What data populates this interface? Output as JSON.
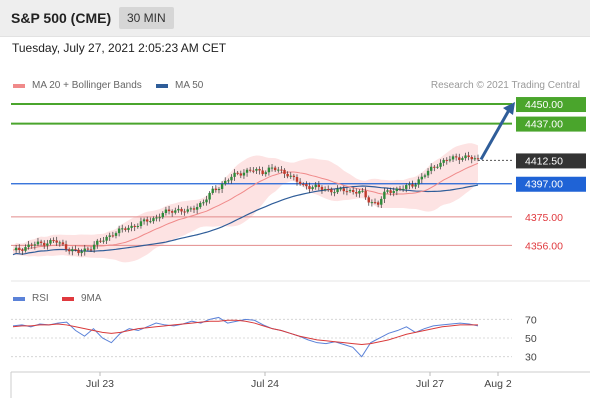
{
  "header": {
    "title": "S&P 500 (CME)",
    "timeframe": "30 MIN"
  },
  "datetime": "Tuesday, July 27, 2021 2:05:23 AM CET",
  "legend": {
    "ma20": "MA 20 + Bollinger Bands",
    "ma50": "MA 50",
    "credit": "Research © 2021 Trading Central",
    "rsi": "RSI",
    "ma9": "9MA"
  },
  "colors": {
    "ma20": "#f08a8a",
    "band": "#fde3e3",
    "ma50": "#2f5d99",
    "green": "#4aa52c",
    "blue": "#1f63d6",
    "red": "#e0393e",
    "price": "#333333",
    "up": "#2e8b3a",
    "down": "#c0392b",
    "rsi": "#5b82d8",
    "rsi_ma": "#d93a3a"
  },
  "chart_data": [
    {
      "type": "candlestick",
      "y_range": [
        4333,
        4458
      ],
      "x_ticks": [
        "Jul 23",
        "Jul 24",
        "Jul 27",
        "Aug 2"
      ],
      "levels": [
        {
          "value": 4450.0,
          "label": "4450.00",
          "kind": "target"
        },
        {
          "value": 4437.0,
          "label": "4437.00",
          "kind": "target"
        },
        {
          "value": 4412.5,
          "label": "4412.50",
          "kind": "last"
        },
        {
          "value": 4397.0,
          "label": "4397.00",
          "kind": "pivot"
        },
        {
          "value": 4375.0,
          "label": "4375.00",
          "kind": "support"
        },
        {
          "value": 4356.0,
          "label": "4356.00",
          "kind": "support"
        }
      ],
      "close_path": [
        4352,
        4354,
        4356,
        4357,
        4358,
        4359,
        4356,
        4353,
        4351,
        4354,
        4357,
        4360,
        4364,
        4366,
        4368,
        4370,
        4372,
        4374,
        4377,
        4379,
        4380,
        4378,
        4382,
        4385,
        4392,
        4396,
        4400,
        4404,
        4405,
        4406,
        4405,
        4407,
        4406,
        4404,
        4399,
        4396,
        4395,
        4394,
        4393,
        4392,
        4393,
        4392,
        4391,
        4385,
        4384,
        4392,
        4393,
        4394,
        4396,
        4400,
        4405,
        4410,
        4412,
        4414,
        4415,
        4414,
        4413
      ]
    },
    {
      "type": "line",
      "name": "RSI",
      "y_ticks": [
        70,
        50,
        30
      ],
      "y_range": [
        20,
        80
      ],
      "rsi_path": [
        63,
        64,
        62,
        65,
        64,
        66,
        67,
        58,
        52,
        60,
        50,
        45,
        55,
        60,
        58,
        62,
        66,
        64,
        63,
        65,
        68,
        66,
        70,
        72,
        66,
        68,
        70,
        69,
        64,
        60,
        58,
        55,
        52,
        48,
        45,
        44,
        46,
        43,
        40,
        30,
        45,
        50,
        55,
        58,
        62,
        56,
        60,
        63,
        64,
        65,
        66,
        65,
        63
      ],
      "ma_path": [
        62,
        63,
        63,
        64,
        64,
        65,
        64,
        62,
        60,
        58,
        56,
        55,
        56,
        58,
        60,
        61,
        62,
        63,
        64,
        65,
        66,
        67,
        68,
        68,
        69,
        69,
        68,
        66,
        63,
        60,
        58,
        55,
        52,
        50,
        48,
        47,
        46,
        45,
        44,
        43,
        44,
        46,
        48,
        51,
        54,
        56,
        58,
        60,
        62,
        63,
        64,
        64,
        64
      ]
    }
  ]
}
